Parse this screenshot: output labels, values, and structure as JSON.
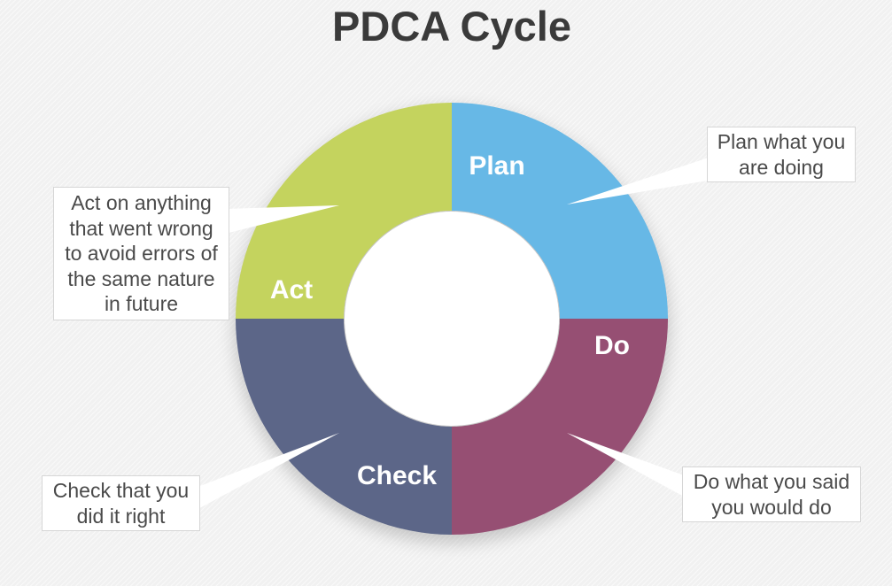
{
  "title": "PDCA Cycle",
  "colors": {
    "plan": "#67b8e6",
    "do": "#964f73",
    "check": "#5c6688",
    "act": "#c4d35e",
    "background": "#f1f1f1",
    "title": "#3a3a3a"
  },
  "segments": {
    "plan": {
      "label": "Plan"
    },
    "do": {
      "label": "Do"
    },
    "check": {
      "label": "Check"
    },
    "act": {
      "label": "Act"
    }
  },
  "callouts": {
    "plan": {
      "lines": [
        "Plan what you",
        "are doing"
      ]
    },
    "do": {
      "lines": [
        "Do what you said",
        "you would do"
      ]
    },
    "check": {
      "lines": [
        "Check that you",
        "did it right"
      ]
    },
    "act": {
      "lines": [
        "Act on anything",
        "that went wrong",
        "to avoid errors of",
        "the same nature",
        "in future"
      ]
    }
  }
}
